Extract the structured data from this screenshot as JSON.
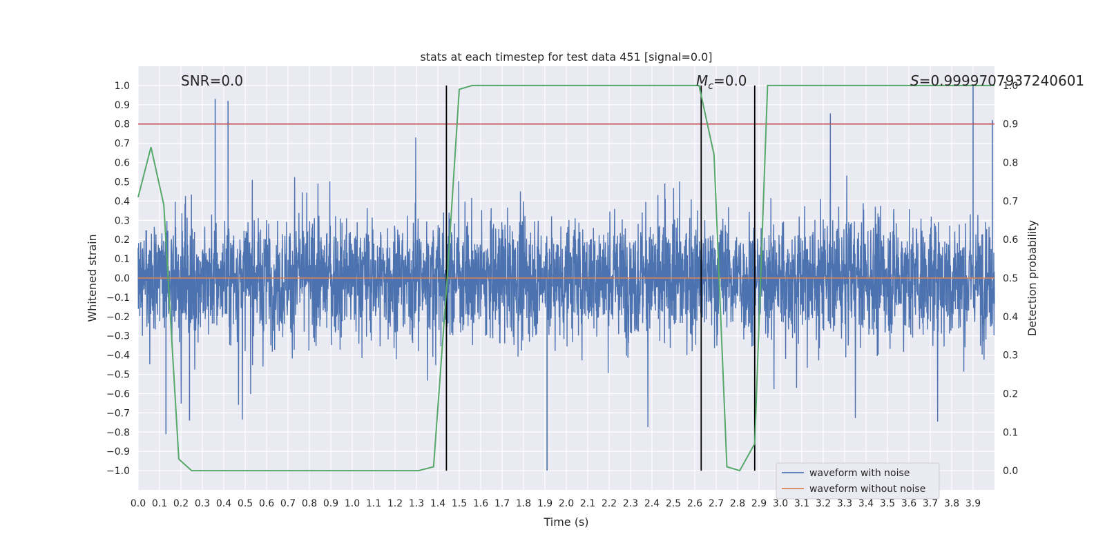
{
  "chart_data": {
    "type": "line",
    "title": "stats at each timestep for test data 451 [signal=0.0]",
    "xlabel": "Time (s)",
    "ylabel": "Whitened strain",
    "y2label": "Detection probability",
    "xlim": [
      0.0,
      4.0
    ],
    "ylim": [
      -1.1,
      1.1
    ],
    "y2lim": [
      -0.05,
      1.05
    ],
    "xticks": [
      "0.0",
      "0.1",
      "0.2",
      "0.3",
      "0.4",
      "0.5",
      "0.6",
      "0.7",
      "0.8",
      "0.9",
      "1.0",
      "1.1",
      "1.2",
      "1.3",
      "1.4",
      "1.5",
      "1.6",
      "1.7",
      "1.8",
      "1.9",
      "2.0",
      "2.1",
      "2.2",
      "2.3",
      "2.4",
      "2.5",
      "2.6",
      "2.7",
      "2.8",
      "2.9",
      "3.0",
      "3.1",
      "3.2",
      "3.3",
      "3.4",
      "3.5",
      "3.6",
      "3.7",
      "3.8",
      "3.9"
    ],
    "yticks": [
      "1.0",
      "0.9",
      "0.8",
      "0.7",
      "0.6",
      "0.5",
      "0.4",
      "0.3",
      "0.2",
      "0.1",
      "0.0",
      "−0.1",
      "−0.2",
      "−0.3",
      "−0.4",
      "−0.5",
      "−0.6",
      "−0.7",
      "−0.8",
      "−0.9",
      "−1.0"
    ],
    "y2ticks": [
      "1.0",
      "0.9",
      "0.8",
      "0.7",
      "0.6",
      "0.5",
      "0.4",
      "0.3",
      "0.2",
      "0.1",
      "0.0"
    ],
    "grid": true,
    "legend_position": "lower-right",
    "threshold": {
      "y2": 0.9,
      "color": "#c44e52"
    },
    "vlines": {
      "x": [
        1.44,
        2.63,
        2.88
      ],
      "color": "#000000"
    },
    "series": [
      {
        "name": "waveform with noise",
        "axis": "left",
        "color": "#4c72b0",
        "description_values": "dense noise between about -0.8 and 0.93 over 0.0-4.0 s; peaks near 0.36 s (0.93), 0.42 s (0.92), 3.9 s (1.0), 1.91 s (-1.0)",
        "amplitude_typical": 0.45
      },
      {
        "name": "waveform without noise",
        "axis": "left",
        "color": "#dd8452",
        "x": [
          0.0,
          4.0
        ],
        "y": [
          0.0,
          0.0
        ]
      },
      {
        "name": "detection probability",
        "axis": "right",
        "color": "#55a868",
        "x": [
          0.0,
          0.06,
          0.12,
          0.19,
          0.25,
          0.31,
          0.38,
          0.44,
          0.5,
          0.56,
          0.62,
          0.69,
          0.75,
          0.81,
          0.88,
          0.94,
          1.0,
          1.06,
          1.12,
          1.19,
          1.25,
          1.31,
          1.38,
          1.44,
          1.5,
          1.56,
          1.62,
          1.69,
          1.75,
          1.81,
          1.88,
          1.94,
          2.0,
          2.06,
          2.12,
          2.19,
          2.25,
          2.31,
          2.38,
          2.44,
          2.5,
          2.56,
          2.62,
          2.69,
          2.75,
          2.81,
          2.88,
          2.94,
          3.0,
          3.06,
          3.12,
          3.19,
          3.25,
          3.31,
          3.38,
          3.44,
          3.5,
          3.56,
          3.62,
          3.69,
          3.75,
          3.81,
          3.88,
          3.94,
          4.0
        ],
        "y": [
          0.71,
          0.84,
          0.69,
          0.03,
          0.0,
          0.0,
          0.0,
          0.0,
          0.0,
          0.0,
          0.0,
          0.0,
          0.0,
          0.0,
          0.0,
          0.0,
          0.0,
          0.0,
          0.0,
          0.0,
          0.0,
          0.0,
          0.01,
          0.47,
          0.99,
          1.0,
          1.0,
          1.0,
          1.0,
          1.0,
          1.0,
          1.0,
          1.0,
          1.0,
          1.0,
          1.0,
          1.0,
          1.0,
          1.0,
          1.0,
          1.0,
          1.0,
          1.0,
          0.82,
          0.01,
          0.0,
          0.07,
          1.0,
          1.0,
          1.0,
          1.0,
          1.0,
          1.0,
          1.0,
          1.0,
          1.0,
          1.0,
          1.0,
          1.0,
          1.0,
          1.0,
          1.0,
          1.0,
          1.0,
          1.0
        ]
      }
    ],
    "annotations": [
      {
        "prefix": "SNR",
        "value": "=0.0"
      },
      {
        "prefix": "M",
        "subscript": "c",
        "value": "=0.0"
      },
      {
        "prefix": "S",
        "value": "=0.9999707937240601"
      }
    ]
  }
}
